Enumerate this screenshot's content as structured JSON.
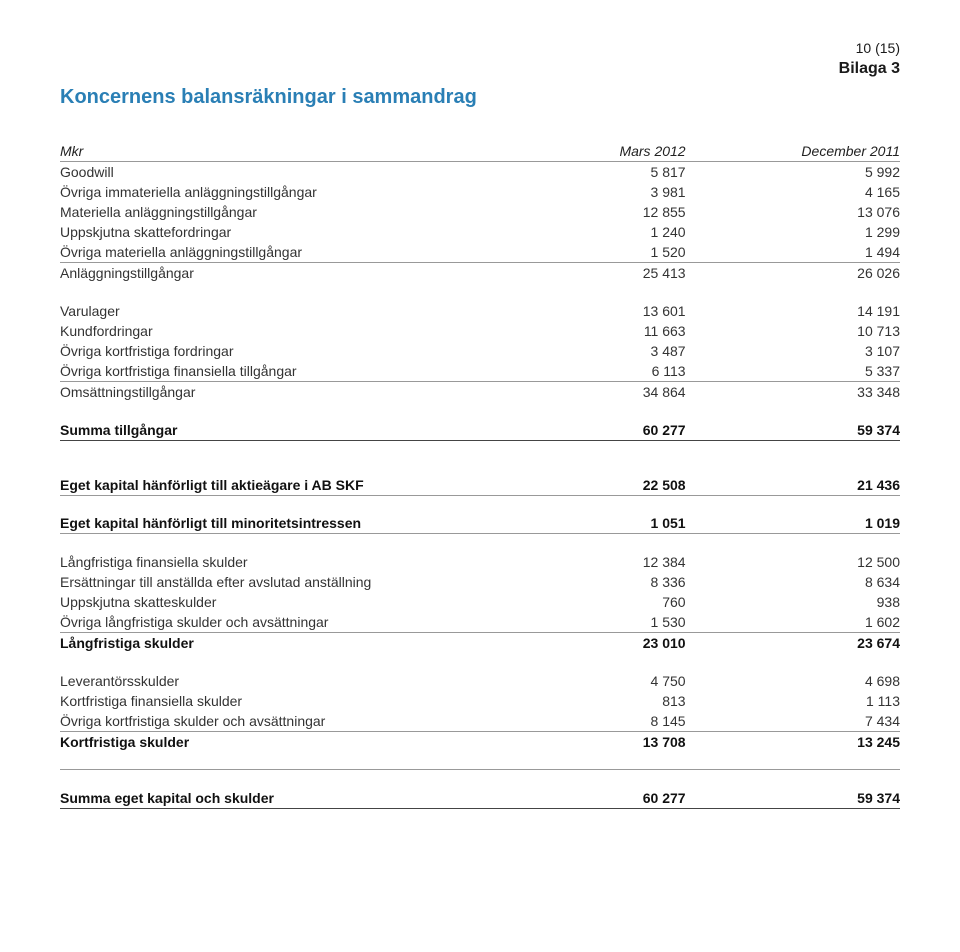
{
  "page_number": "10 (15)",
  "bilaga": "Bilaga 3",
  "title": "Koncernens balansräkningar i sammandrag",
  "header": {
    "c0": "Mkr",
    "c1": "Mars 2012",
    "c2": "December 2011"
  },
  "goodwill": {
    "l": "Goodwill",
    "a": "5 817",
    "b": "5 992"
  },
  "ovr_imm": {
    "l": "Övriga immateriella anläggningstillgångar",
    "a": "3 981",
    "b": "4 165"
  },
  "mat_an": {
    "l": "Materiella anläggningstillgångar",
    "a": "12 855",
    "b": "13 076"
  },
  "upp_skatt": {
    "l": "Uppskjutna skattefordringar",
    "a": "1 240",
    "b": "1 299"
  },
  "ovr_mat_an": {
    "l": "Övriga materiella anläggningstillgångar",
    "a": "1 520",
    "b": "1 494"
  },
  "anl_sum": {
    "l": "Anläggningstillgångar",
    "a": "25 413",
    "b": "26 026"
  },
  "varulager": {
    "l": "Varulager",
    "a": "13 601",
    "b": "14 191"
  },
  "kundfordr": {
    "l": "Kundfordringar",
    "a": "11 663",
    "b": "10 713"
  },
  "ovr_kort_fordr": {
    "l": "Övriga kortfristiga fordringar",
    "a": "3 487",
    "b": "3 107"
  },
  "ovr_kort_fin": {
    "l": "Övriga kortfristiga finansiella tillgångar",
    "a": "6 113",
    "b": "5 337"
  },
  "oms_sum": {
    "l": "Omsättningstillgångar",
    "a": "34 864",
    "b": "33 348"
  },
  "summa_tillg": {
    "l": "Summa tillgångar",
    "a": "60 277",
    "b": "59 374"
  },
  "eget_ab": {
    "l": "Eget kapital hänförligt till aktieägare i AB SKF",
    "a": "22 508",
    "b": "21 436"
  },
  "eget_min": {
    "l": "Eget kapital hänförligt till minoritetsintressen",
    "a": "1 051",
    "b": "1 019"
  },
  "lang_fin": {
    "l": "Långfristiga finansiella skulder",
    "a": "12 384",
    "b": "12 500"
  },
  "ersatt": {
    "l": "Ersättningar till anställda efter avslutad anställning",
    "a": "8 336",
    "b": "8 634"
  },
  "upp_skatteskuld": {
    "l": "Uppskjutna skatteskulder",
    "a": "760",
    "b": "938"
  },
  "ovr_lang": {
    "l": "Övriga långfristiga skulder och avsättningar",
    "a": "1 530",
    "b": "1 602"
  },
  "lang_sum": {
    "l": "Långfristiga skulder",
    "a": "23 010",
    "b": "23 674"
  },
  "lev": {
    "l": "Leverantörsskulder",
    "a": "4 750",
    "b": "4 698"
  },
  "kort_fin": {
    "l": "Kortfristiga finansiella skulder",
    "a": "813",
    "b": "1 113"
  },
  "ovr_kort_sk": {
    "l": "Övriga kortfristiga skulder och avsättningar",
    "a": "8 145",
    "b": "7 434"
  },
  "kort_sum": {
    "l": "Kortfristiga skulder",
    "a": "13 708",
    "b": "13 245"
  },
  "summa_eget": {
    "l": "Summa eget kapital och skulder",
    "a": "60 277",
    "b": "59 374"
  }
}
